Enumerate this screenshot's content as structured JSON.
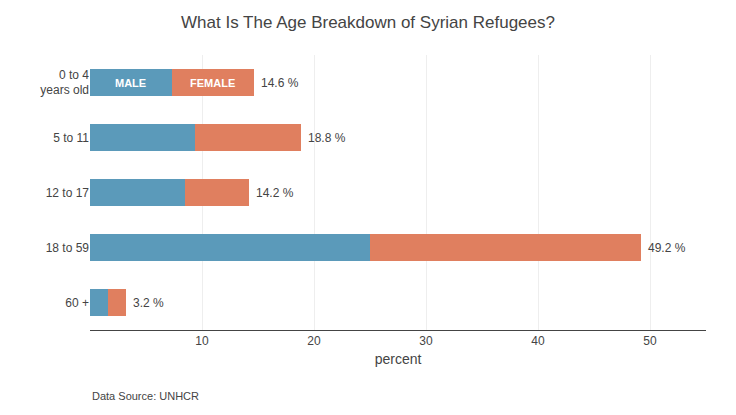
{
  "chart_data": {
    "type": "bar",
    "title": "What Is The Age Breakdown of Syrian Refugees?",
    "orientation": "horizontal",
    "stacked": true,
    "categories": [
      "0 to 4\nyears old",
      "5 to 11",
      "12 to 17",
      "18 to 59",
      "60 +"
    ],
    "series": [
      {
        "name": "MALE",
        "color": "#5b9aba",
        "values": [
          7.3,
          9.4,
          8.5,
          25.0,
          1.6
        ]
      },
      {
        "name": "FEMALE",
        "color": "#e07f5f",
        "values": [
          7.3,
          9.4,
          5.7,
          24.2,
          1.6
        ]
      }
    ],
    "totals": [
      14.6,
      18.8,
      14.2,
      49.2,
      3.2
    ],
    "total_labels": [
      "14.6 %",
      "18.8 %",
      "14.2 %",
      "49.2 %",
      "3.2 %"
    ],
    "xlabel": "percent",
    "xlim": [
      0,
      55
    ],
    "xticks": [
      10,
      20,
      30,
      40,
      50
    ],
    "grid": true,
    "annotations": [
      "Data Source: UNHCR"
    ]
  }
}
